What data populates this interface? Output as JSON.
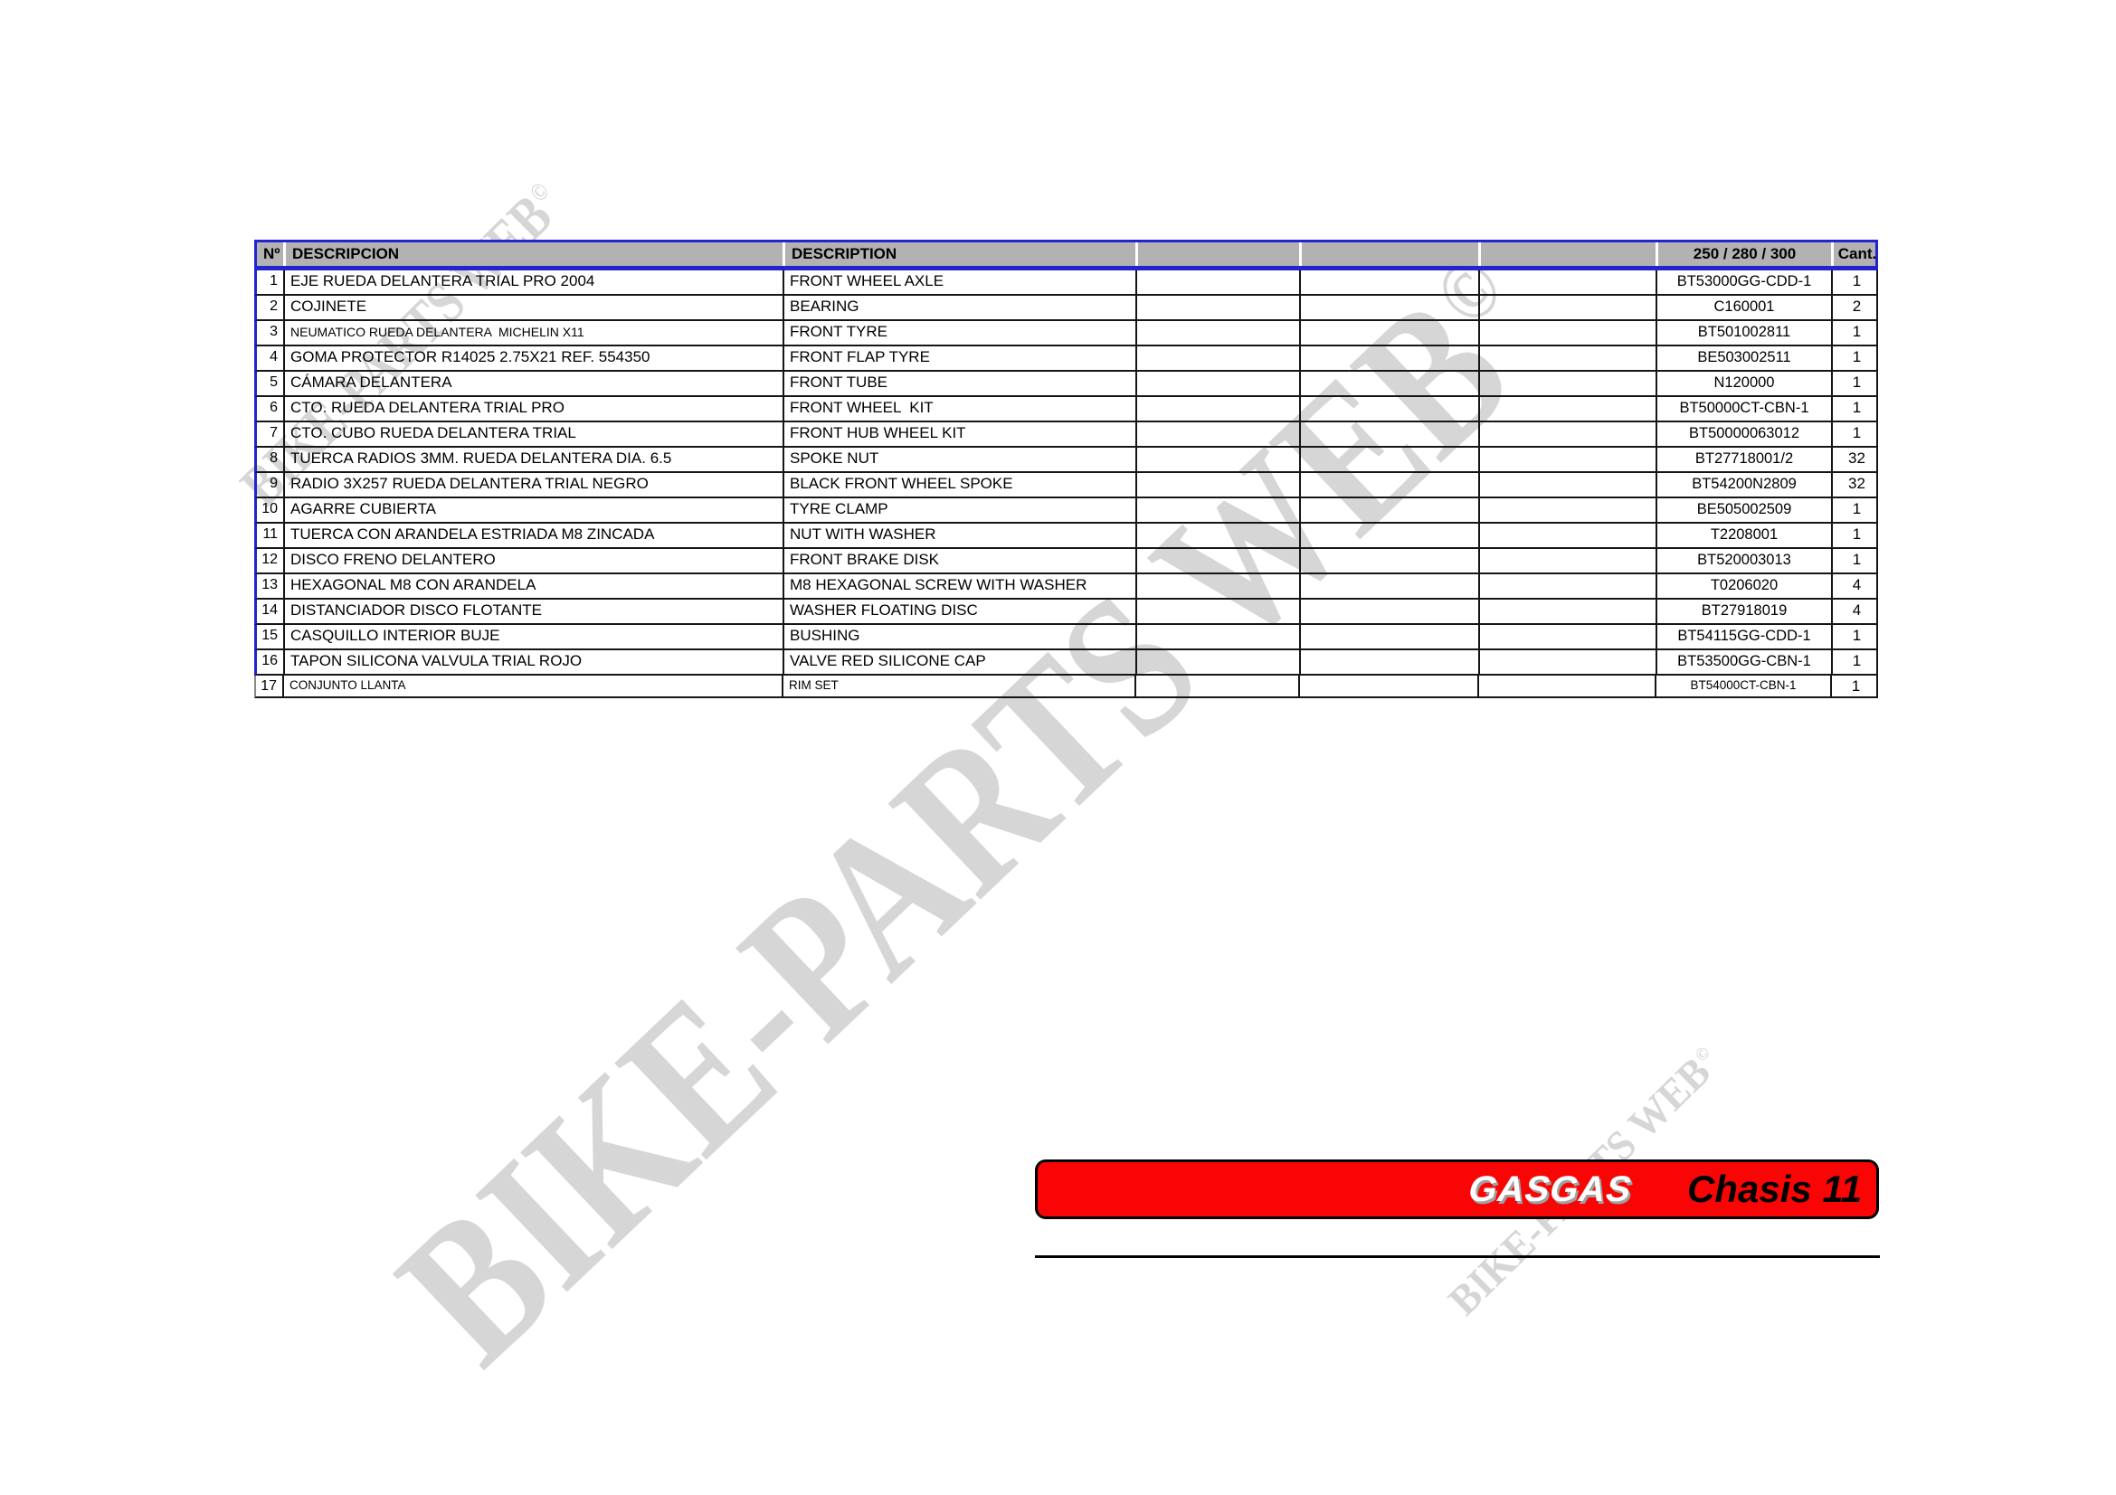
{
  "watermark": {
    "text": "BIKE-PARTS WEB",
    "copyright": "©"
  },
  "colors": {
    "accent_blue": "#2424ce",
    "header_gray": "#b2b2b2",
    "banner_red": "#fa0505",
    "watermark_gray": "#d6d6d6"
  },
  "banner": {
    "brand": "GASGAS",
    "title": "Chasis 11"
  },
  "table": {
    "headers": {
      "num": "Nº",
      "descripcion": "DESCRIPCION",
      "description": "DESCRIPTION",
      "blank": "",
      "ref": "250 / 280 / 300",
      "qty": "Cant."
    },
    "rows": [
      {
        "num": "1",
        "descripcion": "EJE RUEDA DELANTERA TRIAL PRO 2004",
        "description": "FRONT WHEEL AXLE",
        "ref": "BT53000GG-CDD-1",
        "qty": "1",
        "style": "normal"
      },
      {
        "num": "2",
        "descripcion": "COJINETE",
        "description": "BEARING",
        "ref": "C160001",
        "qty": "2",
        "style": "normal"
      },
      {
        "num": "3",
        "descripcion": "NEUMATICO RUEDA DELANTERA  MICHELIN X11",
        "description": "FRONT TYRE",
        "ref": "BT501002811",
        "qty": "1",
        "style": "desc-small"
      },
      {
        "num": "4",
        "descripcion": "GOMA PROTECTOR R14025 2.75X21 REF. 554350",
        "description": "FRONT FLAP TYRE",
        "ref": "BE503002511",
        "qty": "1",
        "style": "normal"
      },
      {
        "num": "5",
        "descripcion": "CÁMARA DELANTERA",
        "description": "FRONT TUBE",
        "ref": "N120000",
        "qty": "1",
        "style": "normal"
      },
      {
        "num": "6",
        "descripcion": "CTO. RUEDA DELANTERA TRIAL PRO",
        "description": "FRONT WHEEL  KIT",
        "ref": "BT50000CT-CBN-1",
        "qty": "1",
        "style": "normal"
      },
      {
        "num": "7",
        "descripcion": "CTO. CUBO RUEDA DELANTERA TRIAL",
        "description": "FRONT HUB WHEEL KIT",
        "ref": "BT50000063012",
        "qty": "1",
        "style": "normal"
      },
      {
        "num": "8",
        "descripcion": "TUERCA RADIOS 3MM. RUEDA DELANTERA DIA. 6.5",
        "description": "SPOKE NUT",
        "ref": "BT27718001/2",
        "qty": "32",
        "style": "normal"
      },
      {
        "num": "9",
        "descripcion": "RADIO 3X257 RUEDA DELANTERA TRIAL NEGRO",
        "description": "BLACK FRONT WHEEL SPOKE",
        "ref": "BT54200N2809",
        "qty": "32",
        "style": "normal"
      },
      {
        "num": "10",
        "descripcion": "AGARRE CUBIERTA",
        "description": "TYRE CLAMP",
        "ref": "BE505002509",
        "qty": "1",
        "style": "normal"
      },
      {
        "num": "11",
        "descripcion": "TUERCA CON ARANDELA ESTRIADA M8 ZINCADA",
        "description": "NUT WITH WASHER",
        "ref": "T2208001",
        "qty": "1",
        "style": "normal"
      },
      {
        "num": "12",
        "descripcion": "DISCO FRENO DELANTERO",
        "description": "FRONT BRAKE DISK",
        "ref": "BT520003013",
        "qty": "1",
        "style": "normal"
      },
      {
        "num": "13",
        "descripcion": "HEXAGONAL M8 CON ARANDELA",
        "description": "M8 HEXAGONAL SCREW WITH WASHER",
        "ref": "T0206020",
        "qty": "4",
        "style": "normal"
      },
      {
        "num": "14",
        "descripcion": "DISTANCIADOR DISCO FLOTANTE",
        "description": "WASHER FLOATING DISC",
        "ref": "BT27918019",
        "qty": "4",
        "style": "normal"
      },
      {
        "num": "15",
        "descripcion": "CASQUILLO INTERIOR BUJE",
        "description": "BUSHING",
        "ref": "BT54115GG-CDD-1",
        "qty": "1",
        "style": "normal"
      },
      {
        "num": "16",
        "descripcion": "TAPON SILICONA VALVULA TRIAL ROJO",
        "description": "VALVE RED SILICONE CAP",
        "ref": "BT53500GG-CBN-1",
        "qty": "1",
        "style": "normal"
      },
      {
        "num": "17",
        "descripcion": "CONJUNTO LLANTA",
        "description": "RIM SET",
        "ref": "BT54000CT-CBN-1",
        "qty": "1",
        "style": "row-small"
      }
    ]
  }
}
